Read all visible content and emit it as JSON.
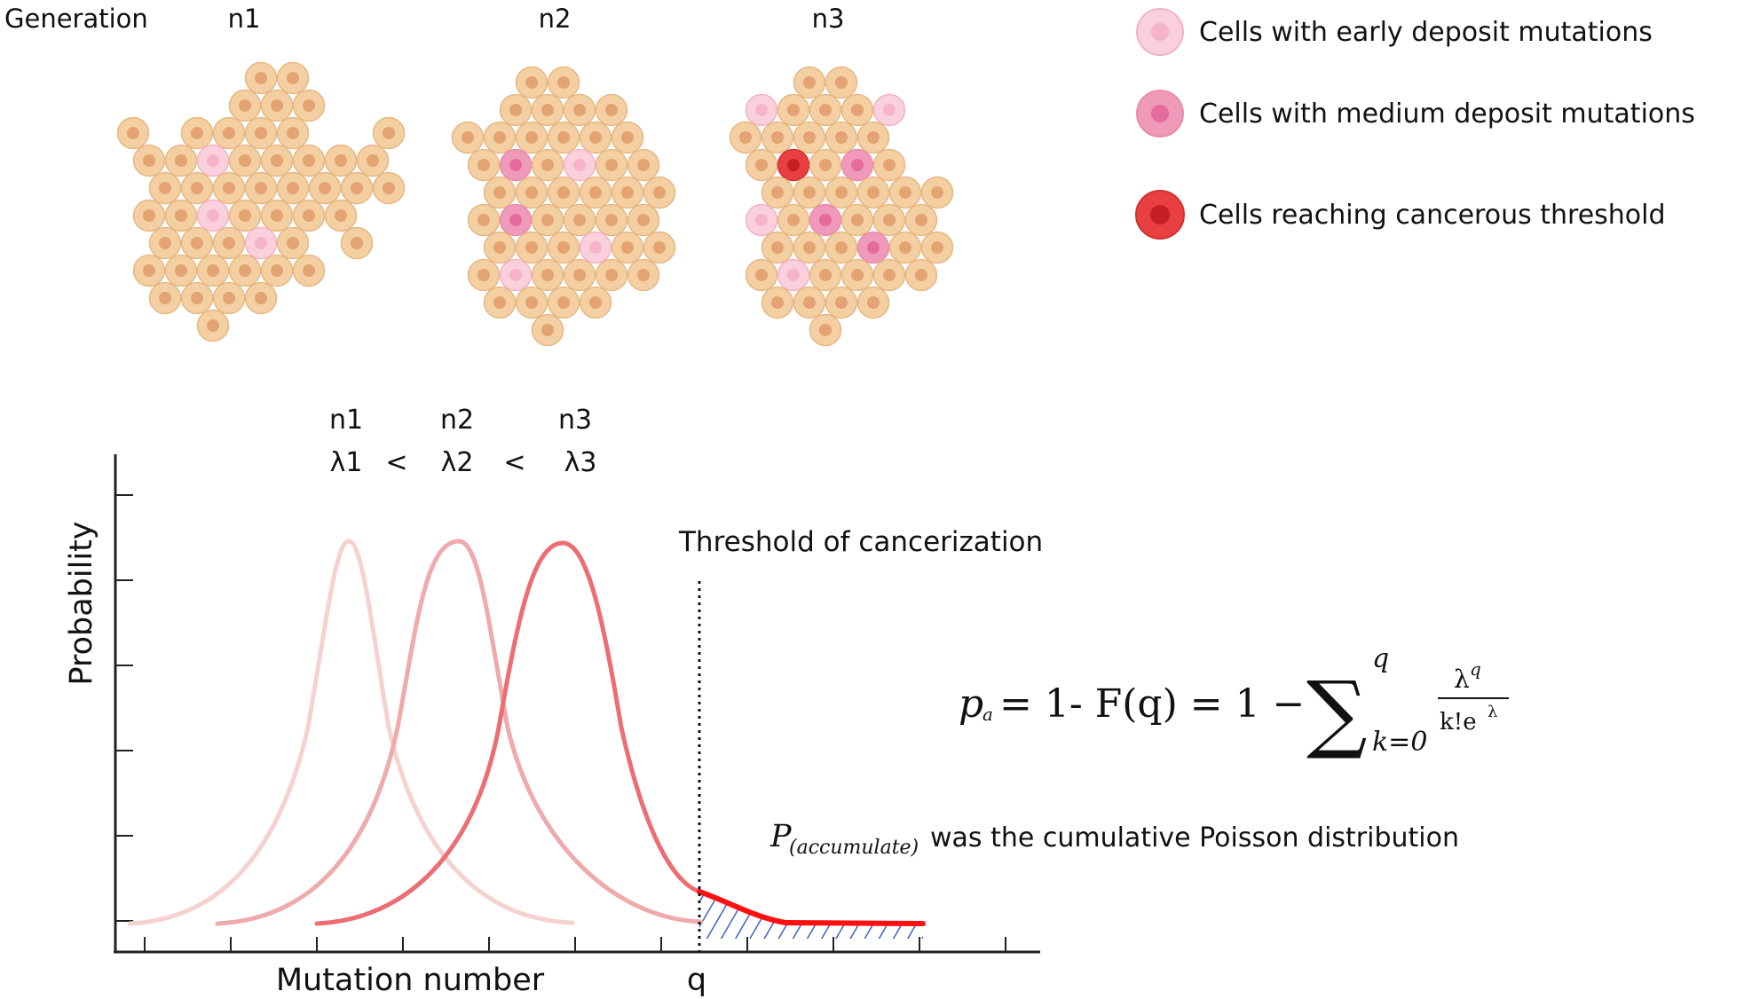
{
  "header": {
    "generation_label": "Generation"
  },
  "generations": [
    {
      "label": "n1"
    },
    {
      "label": "n2"
    },
    {
      "label": "n3"
    }
  ],
  "legend": [
    {
      "text": "Cells with early deposit mutations",
      "fill": "#fad0dc",
      "core": "#f7b4c9"
    },
    {
      "text": "Cells with medium deposit mutations",
      "fill": "#f09ab9",
      "core": "#e56b9c"
    },
    {
      "text": "Cells reaching cancerous threshold",
      "fill": "#e84040",
      "core": "#c41f22"
    }
  ],
  "colors": {
    "normal_cell": "#f3cfa1",
    "normal_core": "#e4a373",
    "normal_stroke": "#e6b885",
    "curve_n1": "#f4d2cf",
    "curve_n2": "#efaaab",
    "curve_n3": "#ec6d72",
    "tail": "#ff1010",
    "hatch": "#3a62c7"
  },
  "lambdas": {
    "n_labels": [
      "n1",
      "n2",
      "n3"
    ],
    "l_labels": [
      "λ1",
      "λ2",
      "λ3"
    ],
    "lt": "<"
  },
  "graph": {
    "y_axis_label": "Probability",
    "x_axis_label": "Mutation number",
    "threshold_label": "Threshold of cancerization",
    "q_label": "q"
  },
  "formula": {
    "p": "p",
    "p_sub": "a",
    "mid": "= 1- F(q) = 1 −",
    "sum_sign": "∑",
    "sum_top": "q",
    "sum_bottom": "k=0",
    "frac_num_base": "λ",
    "frac_num_exp": "q",
    "frac_den_base": "k!e",
    "frac_den_exp": "λ"
  },
  "note": {
    "italic_part": "P",
    "italic_sub": "(accumulate)",
    "text": "was the cumulative Poisson distribution"
  }
}
